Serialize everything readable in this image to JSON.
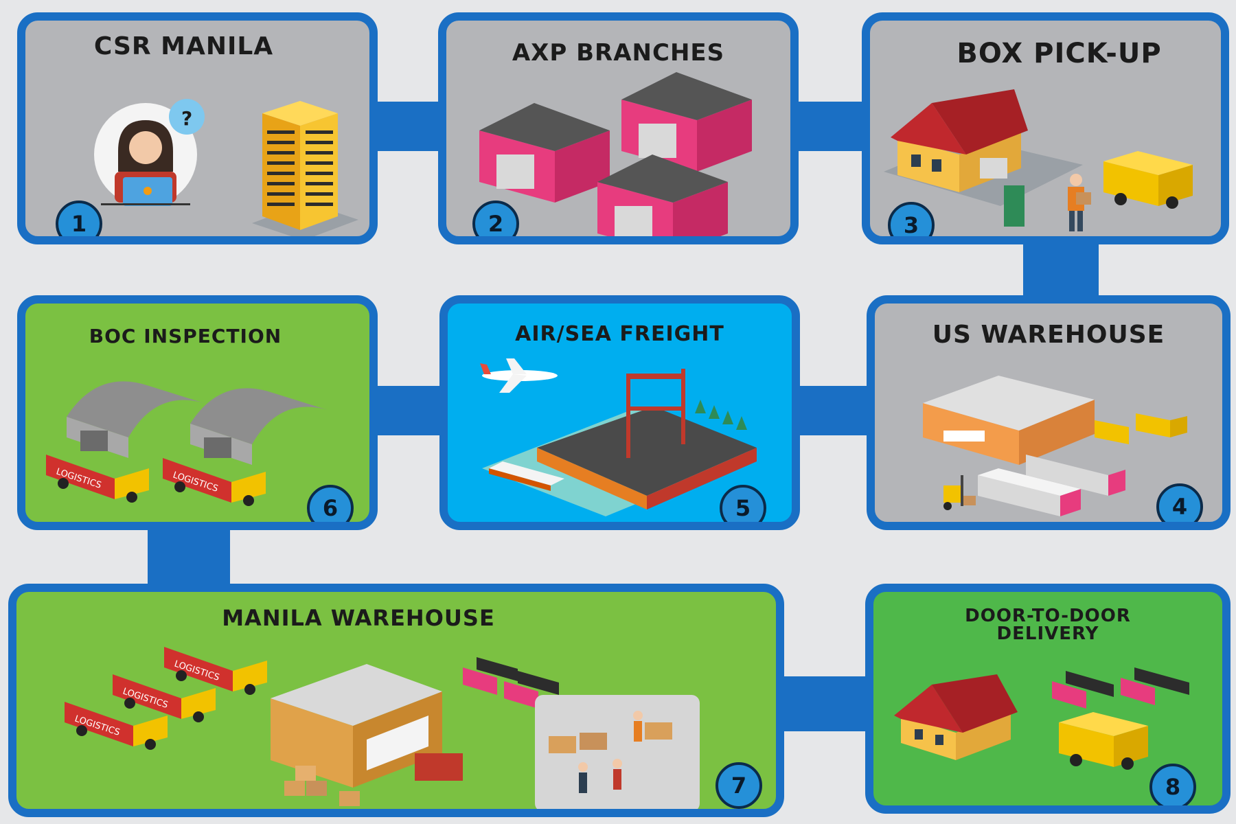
{
  "colors": {
    "frame": "#1a6fc4",
    "background": "#e6e7e9",
    "card_gray": "#b4b5b8",
    "card_green": "#7bc142",
    "card_green_dark": "#4fb84a",
    "card_blue": "#00aeef",
    "badge": "#2590d8"
  },
  "steps": [
    {
      "number": "1",
      "title": "CSR MANILA",
      "icons": [
        "customer-service-agent-icon",
        "office-tower-icon"
      ]
    },
    {
      "number": "2",
      "title": "AXP BRANCHES",
      "icons": [
        "branch-building-icon",
        "branch-building-icon",
        "branch-building-icon"
      ]
    },
    {
      "number": "3",
      "title": "BOX PICK-UP",
      "icons": [
        "house-icon",
        "delivery-van-icon",
        "courier-icon"
      ]
    },
    {
      "number": "4",
      "title": "US WAREHOUSE",
      "icons": [
        "warehouse-icon",
        "forklift-icon",
        "semi-trailer-icon"
      ]
    },
    {
      "number": "5",
      "title": "AIR/SEA FREIGHT",
      "icons": [
        "airplane-icon",
        "port-crane-icon",
        "cargo-ship-icon"
      ]
    },
    {
      "number": "6",
      "title": "BOC INSPECTION",
      "icons": [
        "quonset-hangar-icon",
        "logistics-truck-icon"
      ]
    },
    {
      "number": "7",
      "title": "MANILA WAREHOUSE",
      "icons": [
        "logistics-truck-icon",
        "warehouse-icon",
        "boxes-icon",
        "workers-icon"
      ]
    },
    {
      "number": "8",
      "title": "DOOR-TO-DOOR\nDELIVERY",
      "icons": [
        "house-icon",
        "delivery-van-icon",
        "box-truck-icon"
      ]
    }
  ],
  "truck_label": "LOGISTICS"
}
